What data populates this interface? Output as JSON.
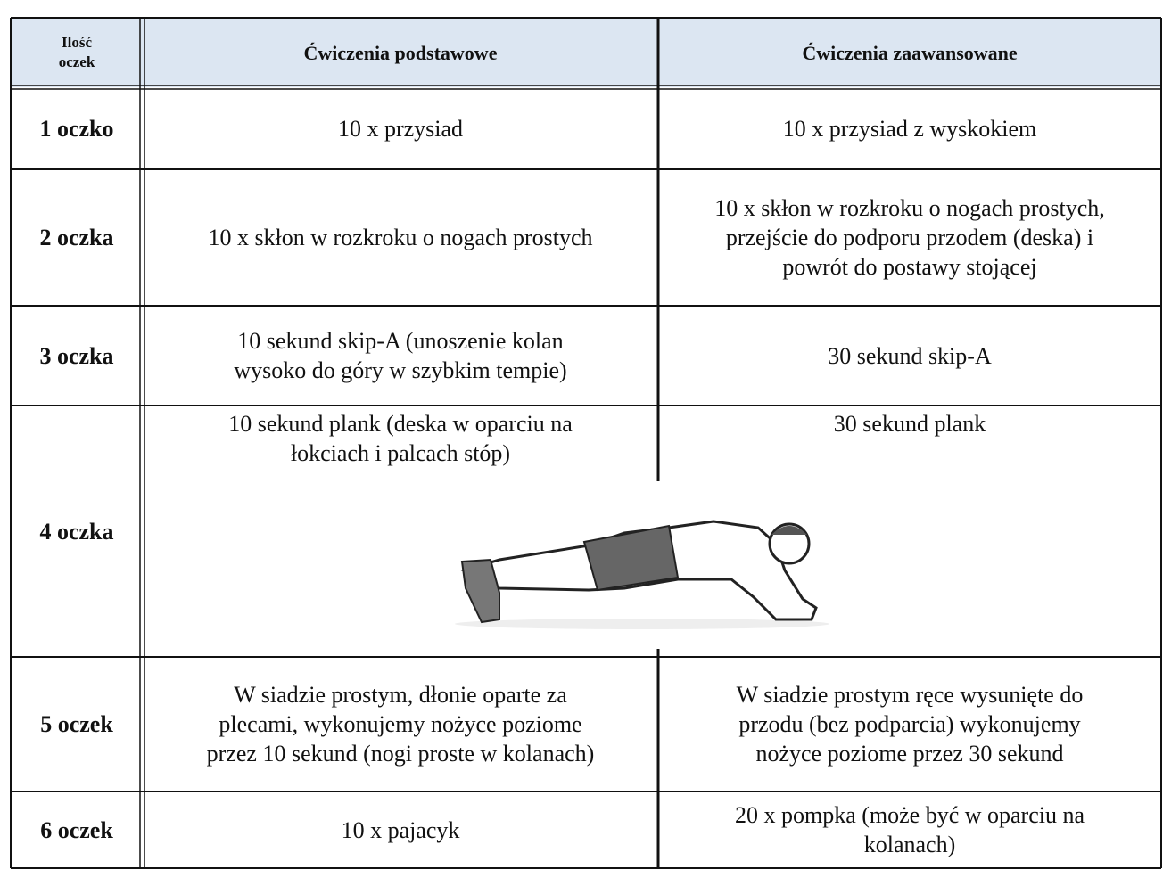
{
  "table": {
    "header": [
      "Ilość\noczek",
      "Ćwiczenia podstawowe",
      "Ćwiczenia zaawansowane"
    ],
    "rows": [
      [
        "1 oczko",
        "10 x przysiad",
        "10 x przysiad z wyskokiem"
      ],
      [
        "2 oczka",
        "10 x skłon w rozkroku o nogach prostych",
        "10 x skłon w rozkroku o nogach prostych,\nprzejście do podporu przodem (deska) i\npowrót do postawy stojącej"
      ],
      [
        "3 oczka",
        "10 sekund skip-A (unoszenie kolan\nwysoko do góry w szybkim tempie)",
        "30 sekund skip-A"
      ],
      [
        "4 oczka",
        "10 sekund plank (deska w oparciu na\nłokciach i palcach stóp)",
        "30 sekund plank"
      ],
      [
        "5 oczek",
        "W siadzie prostym, dłonie oparte za\nplecami, wykonujemy nożyce poziome\nprzez 10 sekund (nogi proste w kolanach)",
        "W siadzie prostym ręce wysunięte do\nprzodu (bez podparcia) wykonujemy\nnożyce poziome przez 30 sekund"
      ],
      [
        "6 oczek",
        "10 x pajacyk",
        "20 x pompka (może być w oparciu na\nkolanach)"
      ]
    ]
  }
}
